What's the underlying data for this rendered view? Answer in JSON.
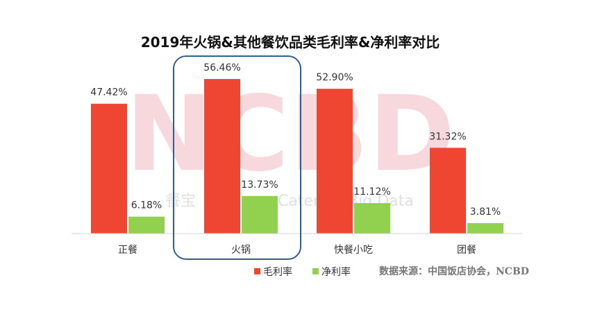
{
  "chart_data": {
    "type": "bar",
    "title": "2019年火锅&其他餐饮品类毛利率&净利率对比",
    "categories": [
      "正餐",
      "火锅",
      "快餐小吃",
      "团餐"
    ],
    "series": [
      {
        "name": "毛利率",
        "values": [
          47.42,
          56.46,
          52.9,
          31.32
        ],
        "labels": [
          "47.42%",
          "56.46%",
          "52.90%",
          "31.32%"
        ],
        "color": "#ee4631"
      },
      {
        "name": "净利率",
        "values": [
          6.18,
          13.73,
          11.12,
          3.81
        ],
        "labels": [
          "6.18%",
          "13.73%",
          "11.12%",
          "3.81%"
        ],
        "color": "#92d050"
      }
    ],
    "ylim": [
      0,
      60
    ],
    "grid": false,
    "legend": "bottom",
    "highlight": {
      "category": "火锅",
      "color": "#2e5f8e"
    }
  },
  "source": "数据来源：中国饭店协会，NCBD",
  "watermark": {
    "main": "NCBD",
    "sub_cn": "餐宝",
    "sub_en": "Catering Big Data"
  }
}
